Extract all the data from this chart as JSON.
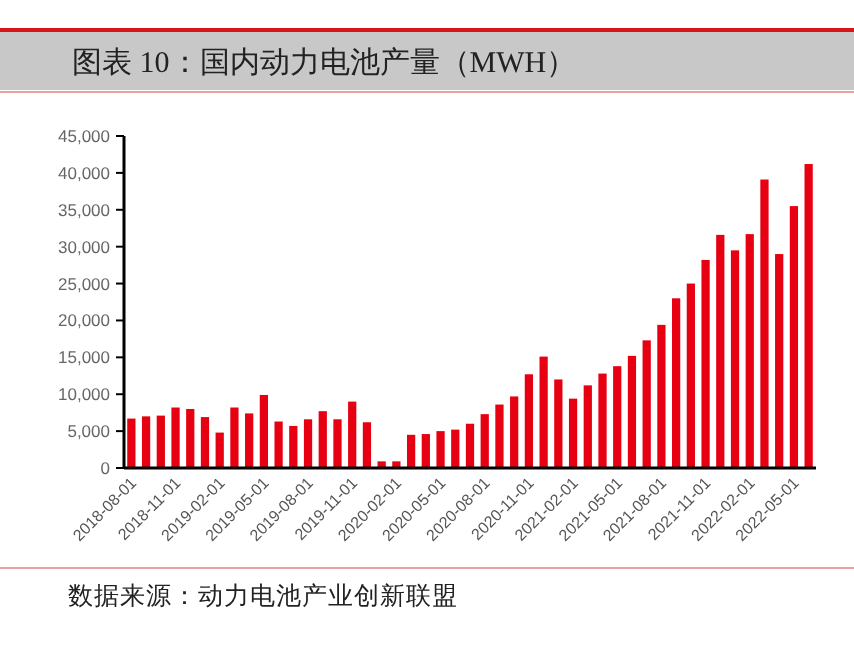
{
  "chart_data": {
    "type": "bar",
    "title": "图表 10：国内动力电池产量（MWH）",
    "annotations": [
      "数据来源：动力电池产业创新联盟"
    ],
    "categories": [
      "2018-08-01",
      null,
      null,
      "2018-11-01",
      null,
      null,
      "2019-02-01",
      null,
      null,
      "2019-05-01",
      null,
      null,
      "2019-08-01",
      null,
      null,
      "2019-11-01",
      null,
      null,
      "2020-02-01",
      null,
      null,
      "2020-05-01",
      null,
      null,
      "2020-08-01",
      null,
      null,
      "2020-11-01",
      null,
      null,
      "2021-02-01",
      null,
      null,
      "2021-05-01",
      null,
      null,
      "2021-08-01",
      null,
      null,
      "2021-11-01",
      null,
      null,
      "2022-02-01",
      null,
      null,
      "2022-05-01",
      null
    ],
    "values": [
      6700,
      7000,
      7100,
      8200,
      8000,
      6900,
      4800,
      8200,
      7400,
      9900,
      6300,
      5700,
      6600,
      7700,
      6600,
      9000,
      6200,
      900,
      900,
      4500,
      4600,
      5000,
      5200,
      6000,
      7300,
      8600,
      9700,
      12700,
      15100,
      12000,
      9400,
      11200,
      12800,
      13800,
      15200,
      17300,
      19400,
      23000,
      25000,
      28200,
      31600,
      29500,
      31700,
      39100,
      29000,
      35500,
      41200
    ],
    "color": "#e60012",
    "ylim": [
      0,
      45000
    ],
    "yticks": [
      0,
      {
        "value": 5000,
        "label": "5,000"
      },
      {
        "value": 10000,
        "label": "10,000"
      },
      {
        "value": 15000,
        "label": "15,000"
      },
      {
        "value": 20000,
        "label": "20,000"
      },
      {
        "value": 25000,
        "label": "25,000"
      },
      {
        "value": 30000,
        "label": "30,000"
      },
      {
        "value": 35000,
        "label": "35,000"
      },
      {
        "value": 40000,
        "label": "40,000"
      },
      {
        "value": 45000,
        "label": "45,000"
      }
    ],
    "grid": false
  }
}
